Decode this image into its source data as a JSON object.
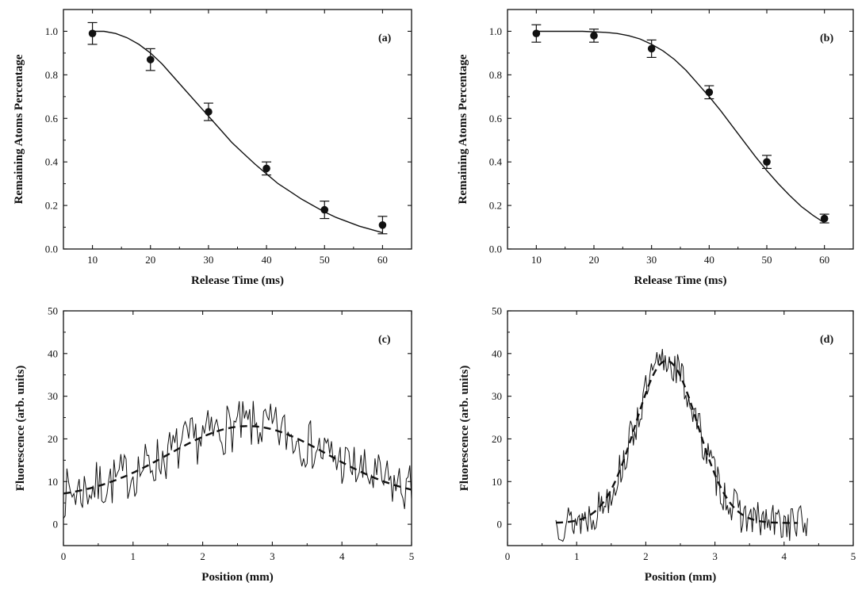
{
  "chart_data": [
    {
      "id": "a",
      "type": "scatter",
      "panel_label": "(a)",
      "xlabel": "Release Time (ms)",
      "ylabel": "Remaining Atoms Percentage",
      "xlim": [
        5,
        65
      ],
      "ylim": [
        0.0,
        1.1
      ],
      "xticks": [
        10,
        20,
        30,
        40,
        50,
        60
      ],
      "yticks": [
        0.0,
        0.2,
        0.4,
        0.6,
        0.8,
        1.0
      ],
      "ytick_format": "fixed1",
      "points": {
        "x": [
          10,
          20,
          30,
          40,
          50,
          60
        ],
        "y": [
          0.99,
          0.87,
          0.63,
          0.37,
          0.18,
          0.11
        ],
        "err": [
          0.05,
          0.05,
          0.04,
          0.03,
          0.04,
          0.04
        ]
      },
      "fit": {
        "style": "solid",
        "x": [
          10,
          12,
          14,
          16,
          18,
          20,
          22,
          24,
          26,
          28,
          30,
          32,
          34,
          36,
          38,
          40,
          42,
          44,
          46,
          48,
          50,
          52,
          54,
          56,
          58,
          60
        ],
        "y": [
          1.0,
          1.0,
          0.99,
          0.97,
          0.94,
          0.9,
          0.85,
          0.79,
          0.73,
          0.67,
          0.61,
          0.55,
          0.49,
          0.44,
          0.39,
          0.345,
          0.3,
          0.265,
          0.23,
          0.2,
          0.17,
          0.145,
          0.125,
          0.105,
          0.09,
          0.075
        ]
      }
    },
    {
      "id": "b",
      "type": "scatter",
      "panel_label": "(b)",
      "xlabel": "Release Time (ms)",
      "ylabel": "Remaining Atoms Percentage",
      "xlim": [
        5,
        65
      ],
      "ylim": [
        0.0,
        1.1
      ],
      "xticks": [
        10,
        20,
        30,
        40,
        50,
        60
      ],
      "yticks": [
        0.0,
        0.2,
        0.4,
        0.6,
        0.8,
        1.0
      ],
      "ytick_format": "fixed1",
      "points": {
        "x": [
          10,
          20,
          30,
          40,
          50,
          60
        ],
        "y": [
          0.99,
          0.98,
          0.92,
          0.72,
          0.4,
          0.14
        ],
        "err": [
          0.04,
          0.03,
          0.04,
          0.03,
          0.03,
          0.02
        ]
      },
      "fit": {
        "style": "solid",
        "x": [
          10,
          14,
          18,
          22,
          24,
          26,
          28,
          30,
          32,
          34,
          36,
          38,
          40,
          42,
          44,
          46,
          48,
          50,
          52,
          54,
          56,
          58,
          60
        ],
        "y": [
          1.0,
          1.0,
          1.0,
          0.995,
          0.99,
          0.98,
          0.965,
          0.94,
          0.91,
          0.87,
          0.82,
          0.76,
          0.7,
          0.635,
          0.565,
          0.495,
          0.425,
          0.36,
          0.3,
          0.245,
          0.195,
          0.155,
          0.12
        ]
      }
    },
    {
      "id": "c",
      "type": "line",
      "panel_label": "(c)",
      "xlabel": "Position (mm)",
      "ylabel": "Fluorescence (arb. units)",
      "xlim": [
        0,
        5
      ],
      "ylim": [
        -5,
        50
      ],
      "xticks": [
        0,
        1,
        2,
        3,
        4,
        5
      ],
      "yticks": [
        0,
        10,
        20,
        30,
        40,
        50
      ],
      "ytick_format": "int",
      "signal": {
        "x_start": 0.0,
        "x_end": 5.0,
        "step": 0.025,
        "gauss": {
          "amp": 17,
          "center": 2.65,
          "sigma": 1.15,
          "offset": 6
        },
        "noise_amp": 6,
        "seed": 7
      },
      "fit": {
        "style": "dashed",
        "x_start": 0.0,
        "x_end": 5.0,
        "gauss": {
          "amp": 17,
          "center": 2.65,
          "sigma": 1.15,
          "offset": 6
        }
      }
    },
    {
      "id": "d",
      "type": "line",
      "panel_label": "(d)",
      "xlabel": "Position (mm)",
      "ylabel": "Fluorescence (arb. units)",
      "xlim": [
        0,
        5
      ],
      "ylim": [
        -5,
        50
      ],
      "xticks": [
        0,
        1,
        2,
        3,
        4,
        5
      ],
      "yticks": [
        0,
        10,
        20,
        30,
        40,
        50
      ],
      "ytick_format": "int",
      "signal": {
        "x_start": 0.7,
        "x_end": 4.35,
        "step": 0.02,
        "gauss": {
          "amp": 38,
          "center": 2.3,
          "sigma": 0.45,
          "offset": 0.3
        },
        "noise_amp": 4.5,
        "seed": 13
      },
      "fit": {
        "style": "dashed",
        "x_start": 0.7,
        "x_end": 4.2,
        "gauss": {
          "amp": 38,
          "center": 2.3,
          "sigma": 0.45,
          "offset": 0.3
        }
      }
    }
  ]
}
